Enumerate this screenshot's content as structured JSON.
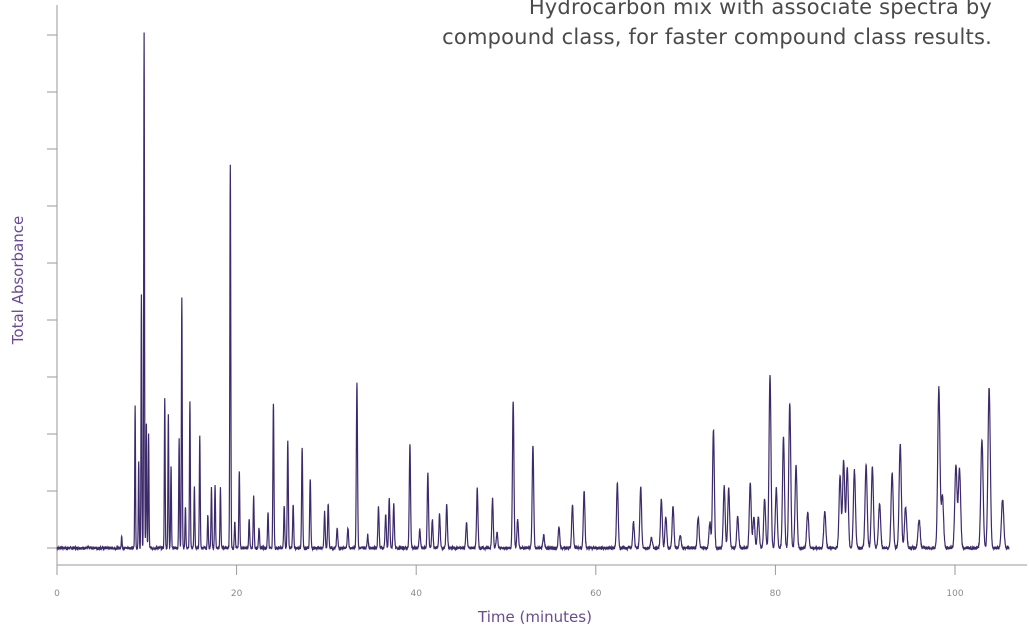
{
  "caption": {
    "line1": "Hydrocarbon mix with associate spectra by",
    "line2": "compound class, for faster compound class results."
  },
  "colors": {
    "trace": "#3c2a6a",
    "axis": "#9a9a9a",
    "label": "#6a4a95"
  },
  "chart_data": {
    "type": "line",
    "title": "Hydrocarbon mix with associate spectra by compound class, for faster compound class results.",
    "xlabel": "Time (minutes)",
    "ylabel": "Total Absorbance",
    "xlim": [
      0,
      108
    ],
    "ylim": [
      0,
      1.0
    ],
    "x_ticks": [
      0,
      20,
      40,
      60,
      80,
      100
    ],
    "y_tick_count": 10,
    "y_tick_labels_shown": false,
    "grid": false,
    "series": [
      {
        "peaks": [
          {
            "x": 7.2,
            "y": 0.025
          },
          {
            "x": 8.7,
            "y": 0.275
          },
          {
            "x": 9.1,
            "y": 0.17
          },
          {
            "x": 9.4,
            "y": 0.49
          },
          {
            "x": 9.7,
            "y": 1.0
          },
          {
            "x": 9.95,
            "y": 0.245
          },
          {
            "x": 10.2,
            "y": 0.22
          },
          {
            "x": 12.0,
            "y": 0.29
          },
          {
            "x": 12.4,
            "y": 0.26
          },
          {
            "x": 12.7,
            "y": 0.16
          },
          {
            "x": 13.6,
            "y": 0.21
          },
          {
            "x": 13.9,
            "y": 0.485
          },
          {
            "x": 14.3,
            "y": 0.08
          },
          {
            "x": 14.8,
            "y": 0.285
          },
          {
            "x": 15.3,
            "y": 0.12
          },
          {
            "x": 15.9,
            "y": 0.215
          },
          {
            "x": 16.8,
            "y": 0.065
          },
          {
            "x": 17.2,
            "y": 0.115
          },
          {
            "x": 17.6,
            "y": 0.12
          },
          {
            "x": 18.2,
            "y": 0.115
          },
          {
            "x": 19.3,
            "y": 0.74
          },
          {
            "x": 19.8,
            "y": 0.05
          },
          {
            "x": 20.3,
            "y": 0.15
          },
          {
            "x": 21.4,
            "y": 0.055
          },
          {
            "x": 21.9,
            "y": 0.1
          },
          {
            "x": 22.5,
            "y": 0.04
          },
          {
            "x": 23.5,
            "y": 0.07
          },
          {
            "x": 24.1,
            "y": 0.28
          },
          {
            "x": 25.3,
            "y": 0.08
          },
          {
            "x": 25.7,
            "y": 0.205
          },
          {
            "x": 26.3,
            "y": 0.085
          },
          {
            "x": 27.3,
            "y": 0.195
          },
          {
            "x": 28.2,
            "y": 0.135
          },
          {
            "x": 29.8,
            "y": 0.07
          },
          {
            "x": 30.2,
            "y": 0.085
          },
          {
            "x": 31.2,
            "y": 0.04
          },
          {
            "x": 32.4,
            "y": 0.04
          },
          {
            "x": 33.4,
            "y": 0.32
          },
          {
            "x": 34.6,
            "y": 0.025
          },
          {
            "x": 35.8,
            "y": 0.08
          },
          {
            "x": 36.6,
            "y": 0.065
          },
          {
            "x": 37.0,
            "y": 0.095
          },
          {
            "x": 37.5,
            "y": 0.085
          },
          {
            "x": 39.3,
            "y": 0.2
          },
          {
            "x": 40.4,
            "y": 0.035
          },
          {
            "x": 41.3,
            "y": 0.145
          },
          {
            "x": 41.8,
            "y": 0.055
          },
          {
            "x": 42.6,
            "y": 0.065
          },
          {
            "x": 43.4,
            "y": 0.085
          },
          {
            "x": 45.6,
            "y": 0.05
          },
          {
            "x": 46.8,
            "y": 0.115
          },
          {
            "x": 48.5,
            "y": 0.095
          },
          {
            "x": 49.0,
            "y": 0.03
          },
          {
            "x": 50.8,
            "y": 0.285
          },
          {
            "x": 51.3,
            "y": 0.055
          },
          {
            "x": 53.0,
            "y": 0.2
          },
          {
            "x": 54.2,
            "y": 0.025
          },
          {
            "x": 55.9,
            "y": 0.04
          },
          {
            "x": 57.4,
            "y": 0.085
          },
          {
            "x": 58.7,
            "y": 0.11
          },
          {
            "x": 62.4,
            "y": 0.125
          },
          {
            "x": 64.2,
            "y": 0.05
          },
          {
            "x": 65.0,
            "y": 0.12
          },
          {
            "x": 66.2,
            "y": 0.02
          },
          {
            "x": 67.3,
            "y": 0.095
          },
          {
            "x": 67.8,
            "y": 0.06
          },
          {
            "x": 68.6,
            "y": 0.08
          },
          {
            "x": 69.4,
            "y": 0.025
          },
          {
            "x": 71.4,
            "y": 0.06
          },
          {
            "x": 72.7,
            "y": 0.05
          },
          {
            "x": 73.1,
            "y": 0.23
          },
          {
            "x": 74.3,
            "y": 0.12
          },
          {
            "x": 74.8,
            "y": 0.115
          },
          {
            "x": 75.8,
            "y": 0.06
          },
          {
            "x": 77.2,
            "y": 0.125
          },
          {
            "x": 77.6,
            "y": 0.06
          },
          {
            "x": 78.1,
            "y": 0.06
          },
          {
            "x": 78.8,
            "y": 0.095
          },
          {
            "x": 79.4,
            "y": 0.335
          },
          {
            "x": 80.1,
            "y": 0.115
          },
          {
            "x": 80.9,
            "y": 0.215
          },
          {
            "x": 81.6,
            "y": 0.28
          },
          {
            "x": 82.3,
            "y": 0.16
          },
          {
            "x": 83.6,
            "y": 0.07
          },
          {
            "x": 85.5,
            "y": 0.07
          },
          {
            "x": 87.2,
            "y": 0.14
          },
          {
            "x": 87.6,
            "y": 0.17
          },
          {
            "x": 88.0,
            "y": 0.155
          },
          {
            "x": 88.8,
            "y": 0.15
          },
          {
            "x": 90.1,
            "y": 0.16
          },
          {
            "x": 90.8,
            "y": 0.155
          },
          {
            "x": 91.6,
            "y": 0.085
          },
          {
            "x": 93.0,
            "y": 0.145
          },
          {
            "x": 93.9,
            "y": 0.2
          },
          {
            "x": 94.5,
            "y": 0.08
          },
          {
            "x": 96.0,
            "y": 0.055
          },
          {
            "x": 98.2,
            "y": 0.31
          },
          {
            "x": 98.6,
            "y": 0.1
          },
          {
            "x": 100.1,
            "y": 0.16
          },
          {
            "x": 100.5,
            "y": 0.155
          },
          {
            "x": 103.0,
            "y": 0.21
          },
          {
            "x": 103.8,
            "y": 0.31
          },
          {
            "x": 105.3,
            "y": 0.095
          }
        ]
      }
    ]
  }
}
